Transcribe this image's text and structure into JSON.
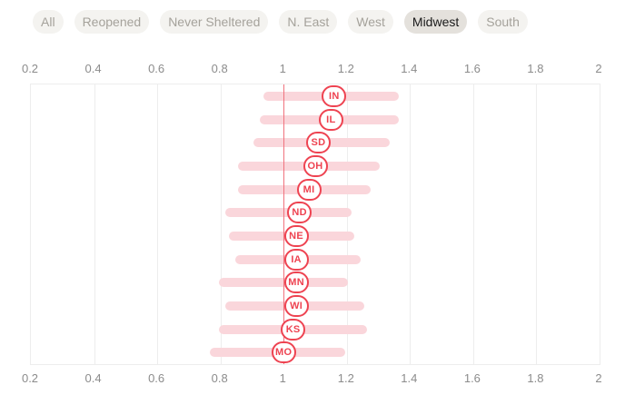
{
  "filters": {
    "items": [
      {
        "label": "All",
        "selected": false
      },
      {
        "label": "Reopened",
        "selected": false
      },
      {
        "label": "Never Sheltered",
        "selected": false
      },
      {
        "label": "N. East",
        "selected": false
      },
      {
        "label": "West",
        "selected": false
      },
      {
        "label": "Midwest",
        "selected": true
      },
      {
        "label": "South",
        "selected": false
      }
    ]
  },
  "chart_data": {
    "type": "dumbbell-range",
    "title": "",
    "xlabel": "",
    "ylabel": "",
    "x_axis": {
      "min": 0.2,
      "max": 2,
      "ticks": [
        0.2,
        0.4,
        0.6,
        0.8,
        1,
        1.2,
        1.4,
        1.6,
        1.8,
        2
      ],
      "tick_labels": [
        "0.2",
        "0.4",
        "0.6",
        "0.8",
        "1",
        "1.2",
        "1.4",
        "1.6",
        "1.8",
        "2"
      ],
      "shown_on": [
        "top",
        "bottom"
      ],
      "grid": true
    },
    "reference_line": 1,
    "rows": [
      {
        "label": "IN",
        "low": 0.95,
        "high": 1.35,
        "point": 1.16
      },
      {
        "label": "IL",
        "low": 0.94,
        "high": 1.35,
        "point": 1.15
      },
      {
        "label": "SD",
        "low": 0.92,
        "high": 1.32,
        "point": 1.11
      },
      {
        "label": "OH",
        "low": 0.87,
        "high": 1.29,
        "point": 1.1
      },
      {
        "label": "MI",
        "low": 0.87,
        "high": 1.26,
        "point": 1.08
      },
      {
        "label": "ND",
        "low": 0.83,
        "high": 1.2,
        "point": 1.05
      },
      {
        "label": "NE",
        "low": 0.84,
        "high": 1.21,
        "point": 1.04
      },
      {
        "label": "IA",
        "low": 0.86,
        "high": 1.23,
        "point": 1.04
      },
      {
        "label": "MN",
        "low": 0.81,
        "high": 1.19,
        "point": 1.04
      },
      {
        "label": "WI",
        "low": 0.83,
        "high": 1.24,
        "point": 1.04
      },
      {
        "label": "KS",
        "low": 0.81,
        "high": 1.25,
        "point": 1.03
      },
      {
        "label": "MO",
        "low": 0.78,
        "high": 1.18,
        "point": 1.0
      }
    ]
  },
  "colors": {
    "accent_red": "#ee4351",
    "bar_pink": "#fad6db",
    "reference_line": "#f0737e",
    "grid": "#ededed",
    "axis_text": "#8c8c8c",
    "pill_bg": "#f4f3f0",
    "pill_text": "#a5a29b",
    "pill_selected_bg": "#e4e1dc",
    "pill_selected_text": "#1a1a1a"
  }
}
